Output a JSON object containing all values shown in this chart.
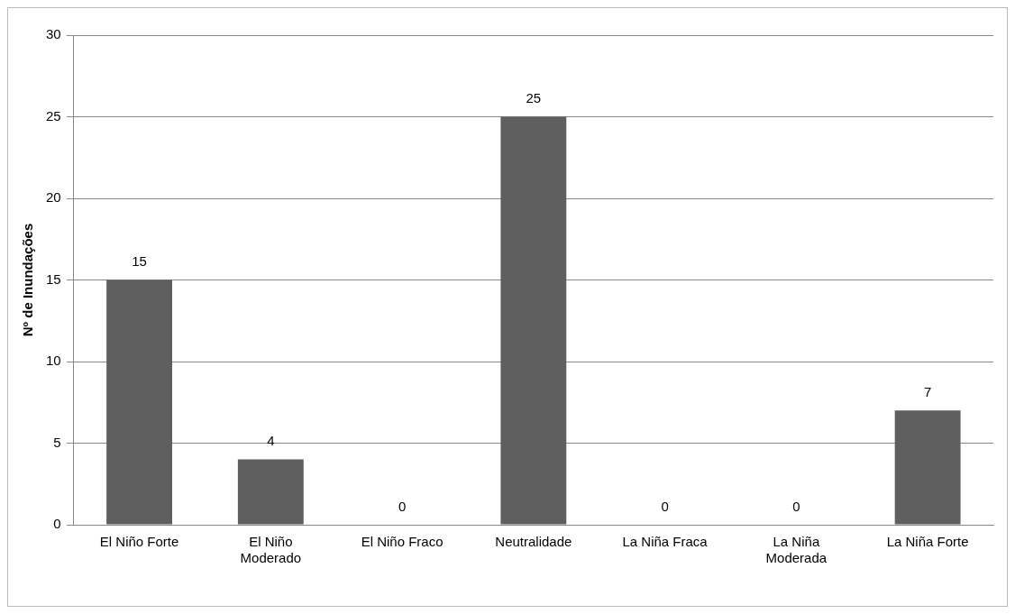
{
  "chart_data": {
    "type": "bar",
    "ylabel": "Nº de Inundações",
    "categories": [
      "El Niño Forte",
      "El Niño Moderado",
      "El Niño Fraco",
      "Neutralidade",
      "La Niña Fraca",
      "La Niña Moderada",
      "La Niña Forte"
    ],
    "values": [
      15,
      4,
      0,
      25,
      0,
      0,
      7
    ],
    "color": "#5f5f5f",
    "ylim": [
      0,
      30
    ],
    "yticks": [
      0,
      5,
      10,
      15,
      20,
      25,
      30
    ],
    "grid": "y",
    "data_labels": true
  }
}
